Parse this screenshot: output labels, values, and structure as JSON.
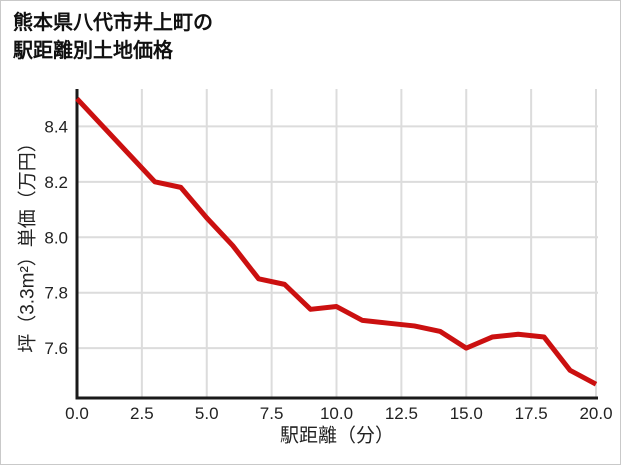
{
  "page": {
    "title_line1": "熊本県八代市井上町の",
    "title_line2": "駅距離別土地価格"
  },
  "chart_data": {
    "type": "line",
    "title": "熊本県八代市井上町の駅距離別土地価格",
    "xlabel": "駅距離（分）",
    "ylabel": "坪（3.3m²）単価（万円）",
    "x": [
      0,
      1,
      2,
      3,
      4,
      5,
      6,
      7,
      8,
      9,
      10,
      11,
      12,
      13,
      14,
      15,
      16,
      17,
      18,
      19,
      20
    ],
    "values": [
      8.5,
      8.4,
      8.3,
      8.2,
      8.18,
      8.07,
      7.97,
      7.85,
      7.83,
      7.74,
      7.75,
      7.7,
      7.69,
      7.68,
      7.66,
      7.6,
      7.64,
      7.65,
      7.64,
      7.52,
      7.47
    ],
    "xlim": [
      0,
      20
    ],
    "ylim": [
      7.42,
      8.535
    ],
    "xticks": [
      0,
      2.5,
      5,
      7.5,
      10,
      12.5,
      15,
      17.5,
      20
    ],
    "xtick_labels": [
      "0.0",
      "2.5",
      "5.0",
      "7.5",
      "10.0",
      "12.5",
      "15.0",
      "17.5",
      "20.0"
    ],
    "yticks": [
      7.6,
      7.8,
      8.0,
      8.2,
      8.4
    ],
    "ytick_labels": [
      "7.6",
      "7.8",
      "8.0",
      "8.2",
      "8.4"
    ],
    "grid": true,
    "legend": "none",
    "line_color": "#cb1010",
    "grid_color": "#dcdcdc",
    "axis_color": "#1a1a1a",
    "tick_label_color": "#222222"
  }
}
